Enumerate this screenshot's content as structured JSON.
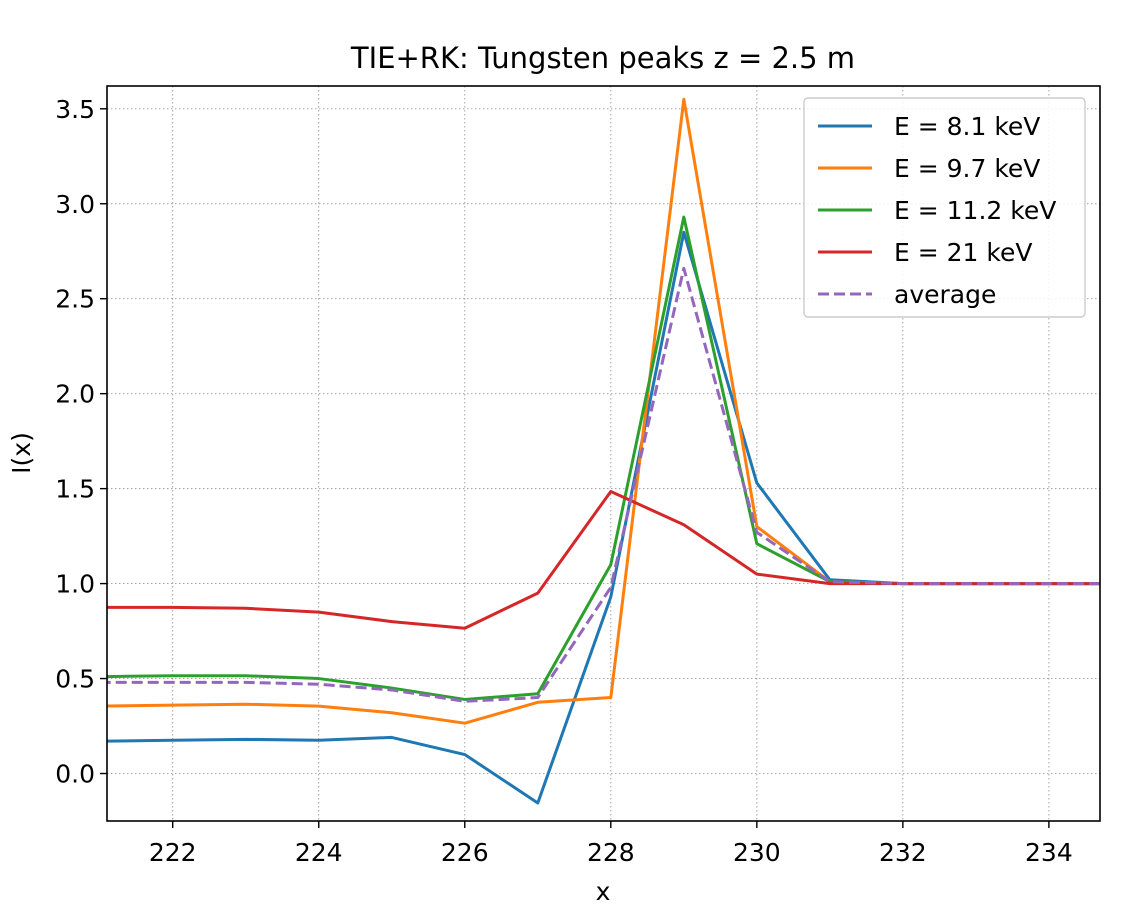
{
  "chart_data": {
    "type": "line",
    "title": "TIE+RK: Tungsten peaks  z = 2.5 m",
    "xlabel": "x",
    "ylabel": "I(x)",
    "xlim": [
      221.1,
      234.7
    ],
    "ylim": [
      -0.25,
      3.62
    ],
    "xticks": [
      222,
      224,
      226,
      228,
      230,
      232,
      234
    ],
    "yticks": [
      0.0,
      0.5,
      1.0,
      1.5,
      2.0,
      2.5,
      3.0,
      3.5
    ],
    "xtick_labels": [
      "222",
      "224",
      "226",
      "228",
      "230",
      "232",
      "234"
    ],
    "ytick_labels": [
      "0.0",
      "0.5",
      "1.0",
      "1.5",
      "2.0",
      "2.5",
      "3.0",
      "3.5"
    ],
    "grid": true,
    "legend_position": "top-right",
    "x": [
      221,
      222,
      223,
      224,
      225,
      226,
      227,
      228,
      229,
      230,
      231,
      232,
      233,
      234,
      235
    ],
    "series": [
      {
        "name": "E = 8.1 keV",
        "color": "#1f77b4",
        "dash": "solid",
        "values": [
          0.17,
          0.175,
          0.18,
          0.175,
          0.19,
          0.1,
          -0.155,
          0.93,
          2.85,
          1.53,
          1.02,
          1.0,
          1.0,
          1.0,
          1.0
        ]
      },
      {
        "name": "E = 9.7 keV",
        "color": "#ff7f0e",
        "dash": "solid",
        "values": [
          0.355,
          0.36,
          0.365,
          0.355,
          0.32,
          0.265,
          0.375,
          0.4,
          3.55,
          1.3,
          1.01,
          1.0,
          1.0,
          1.0,
          1.0
        ]
      },
      {
        "name": "E = 11.2 keV",
        "color": "#2ca02c",
        "dash": "solid",
        "values": [
          0.51,
          0.515,
          0.515,
          0.5,
          0.45,
          0.39,
          0.42,
          1.1,
          2.93,
          1.21,
          1.01,
          1.0,
          1.0,
          1.0,
          1.0
        ]
      },
      {
        "name": "E = 21 keV",
        "color": "#d62728",
        "dash": "solid",
        "values": [
          0.875,
          0.875,
          0.87,
          0.85,
          0.8,
          0.765,
          0.95,
          1.485,
          1.31,
          1.05,
          1.0,
          1.0,
          1.0,
          1.0,
          1.0
        ]
      },
      {
        "name": "average",
        "color": "#9467bd",
        "dash": "dashed",
        "values": [
          0.48,
          0.48,
          0.48,
          0.47,
          0.44,
          0.38,
          0.4,
          0.98,
          2.66,
          1.27,
          1.01,
          1.0,
          1.0,
          1.0,
          1.0
        ]
      }
    ]
  }
}
